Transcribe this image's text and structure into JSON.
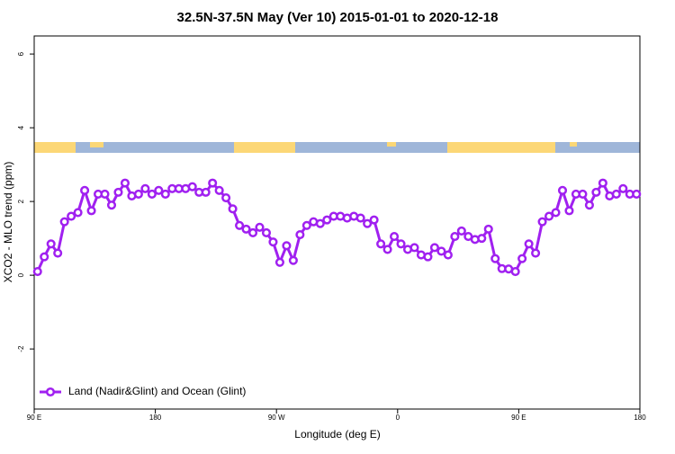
{
  "chart_data": {
    "type": "line",
    "title": "32.5N-37.5N May (Ver 10)   2015-01-01 to 2020-12-18",
    "x_label": "Longitude (deg E)",
    "y_label": "XCO2 - MLO trend (ppm)",
    "xlim": [
      90,
      540
    ],
    "ylim": [
      -3.63,
      6.49
    ],
    "xticks": [
      {
        "value": 90,
        "label": "90 E"
      },
      180,
      {
        "value": 270,
        "label": "90 W"
      },
      {
        "value": 360,
        "label": "0"
      },
      {
        "value": 450,
        "label": "90 E"
      },
      {
        "value": 540,
        "label": "180"
      }
    ],
    "yticks": [
      -2,
      0,
      2,
      4,
      6
    ],
    "legend": "bottom-left",
    "x": [
      92.5,
      97.5,
      102.5,
      107.5,
      112.5,
      117.5,
      122.5,
      127.5,
      132.5,
      137.5,
      142.5,
      147.5,
      152.5,
      157.5,
      162.5,
      167.5,
      172.5,
      177.5,
      182.5,
      187.5,
      192.5,
      197.5,
      202.5,
      207.5,
      212.5,
      217.5,
      222.5,
      227.5,
      232.5,
      237.5,
      242.5,
      247.5,
      252.5,
      257.5,
      262.5,
      267.5,
      272.5,
      277.5,
      282.5,
      287.5,
      292.5,
      297.5,
      302.5,
      307.5,
      312.5,
      317.5,
      322.5,
      327.5,
      332.5,
      337.5,
      342.5,
      347.5,
      352.5,
      357.5,
      362.5,
      367.5,
      372.5,
      377.5,
      382.5,
      387.5,
      392.5,
      397.5,
      402.5,
      407.5,
      412.5,
      417.5,
      422.5,
      427.5,
      432.5,
      437.5,
      442.5,
      447.5,
      452.5,
      457.5,
      462.5,
      467.5,
      472.5,
      477.5,
      482.5,
      487.5,
      492.5,
      497.5,
      502.5,
      507.5,
      512.5,
      517.5,
      522.5,
      527.5,
      532.5,
      537.5
    ],
    "series": [
      {
        "name": "Land (Nadir&Glint) and Ocean (Glint)",
        "color": "#a020f0",
        "values": [
          0.1,
          0.5,
          0.85,
          0.6,
          1.45,
          1.6,
          1.7,
          2.3,
          1.75,
          2.2,
          2.2,
          1.9,
          2.25,
          2.5,
          2.15,
          2.2,
          2.35,
          2.2,
          2.3,
          2.2,
          2.35,
          2.35,
          2.35,
          2.4,
          2.25,
          2.25,
          2.5,
          2.3,
          2.1,
          1.8,
          1.35,
          1.25,
          1.15,
          1.3,
          1.15,
          0.9,
          0.35,
          0.8,
          0.4,
          1.1,
          1.35,
          1.45,
          1.4,
          1.5,
          1.6,
          1.6,
          1.55,
          1.6,
          1.55,
          1.4,
          1.5,
          0.85,
          0.7,
          1.05,
          0.85,
          0.7,
          0.75,
          0.55,
          0.5,
          0.75,
          0.65,
          0.55,
          1.05,
          1.2,
          1.05,
          0.97,
          1.0,
          1.25,
          0.45,
          0.18,
          0.17,
          0.1,
          0.45,
          0.85,
          0.6,
          1.45,
          1.6,
          1.7,
          2.3,
          1.75,
          2.2,
          2.2,
          1.9,
          2.25,
          2.5,
          2.15,
          2.2,
          2.35,
          2.2,
          2.2
        ]
      }
    ]
  }
}
